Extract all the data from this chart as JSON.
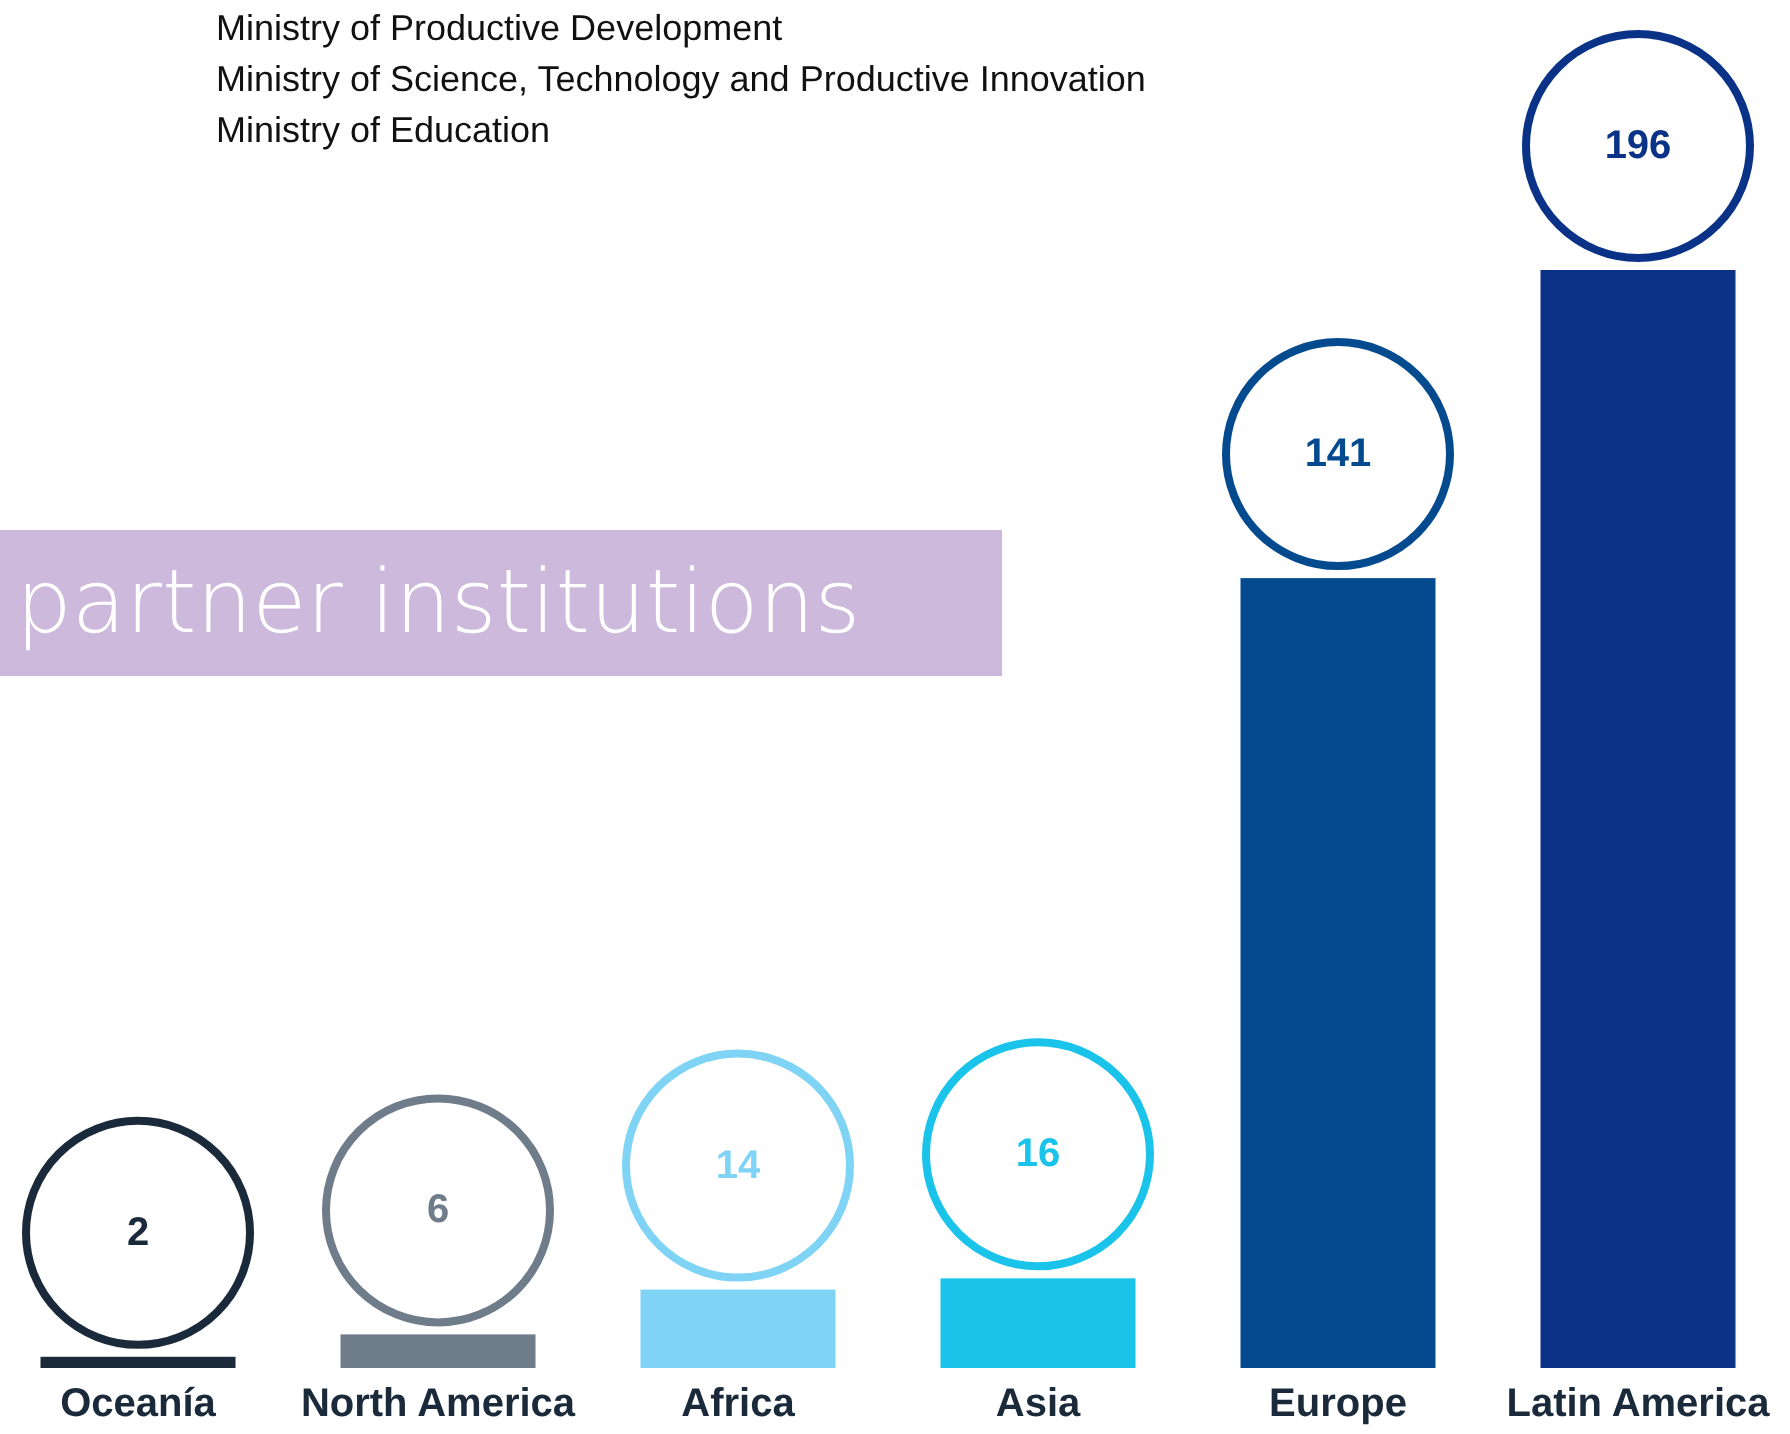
{
  "chart_data": {
    "type": "bar",
    "title": "partner institutions",
    "annotations": [
      "Ministry of Productive Development",
      "Ministry of Science, Technology and Productive Innovation",
      "Ministry of Education"
    ],
    "categories": [
      "Oceanía",
      "North America",
      "Africa",
      "Asia",
      "Europe",
      "Latin America"
    ],
    "values": [
      2,
      6,
      14,
      16,
      141,
      196
    ],
    "colors": [
      "#1b2a3a",
      "#6f7c8a",
      "#7fd3f5",
      "#1ac3ea",
      "#044a8f",
      "#0a3387"
    ],
    "data_labels": true
  }
}
